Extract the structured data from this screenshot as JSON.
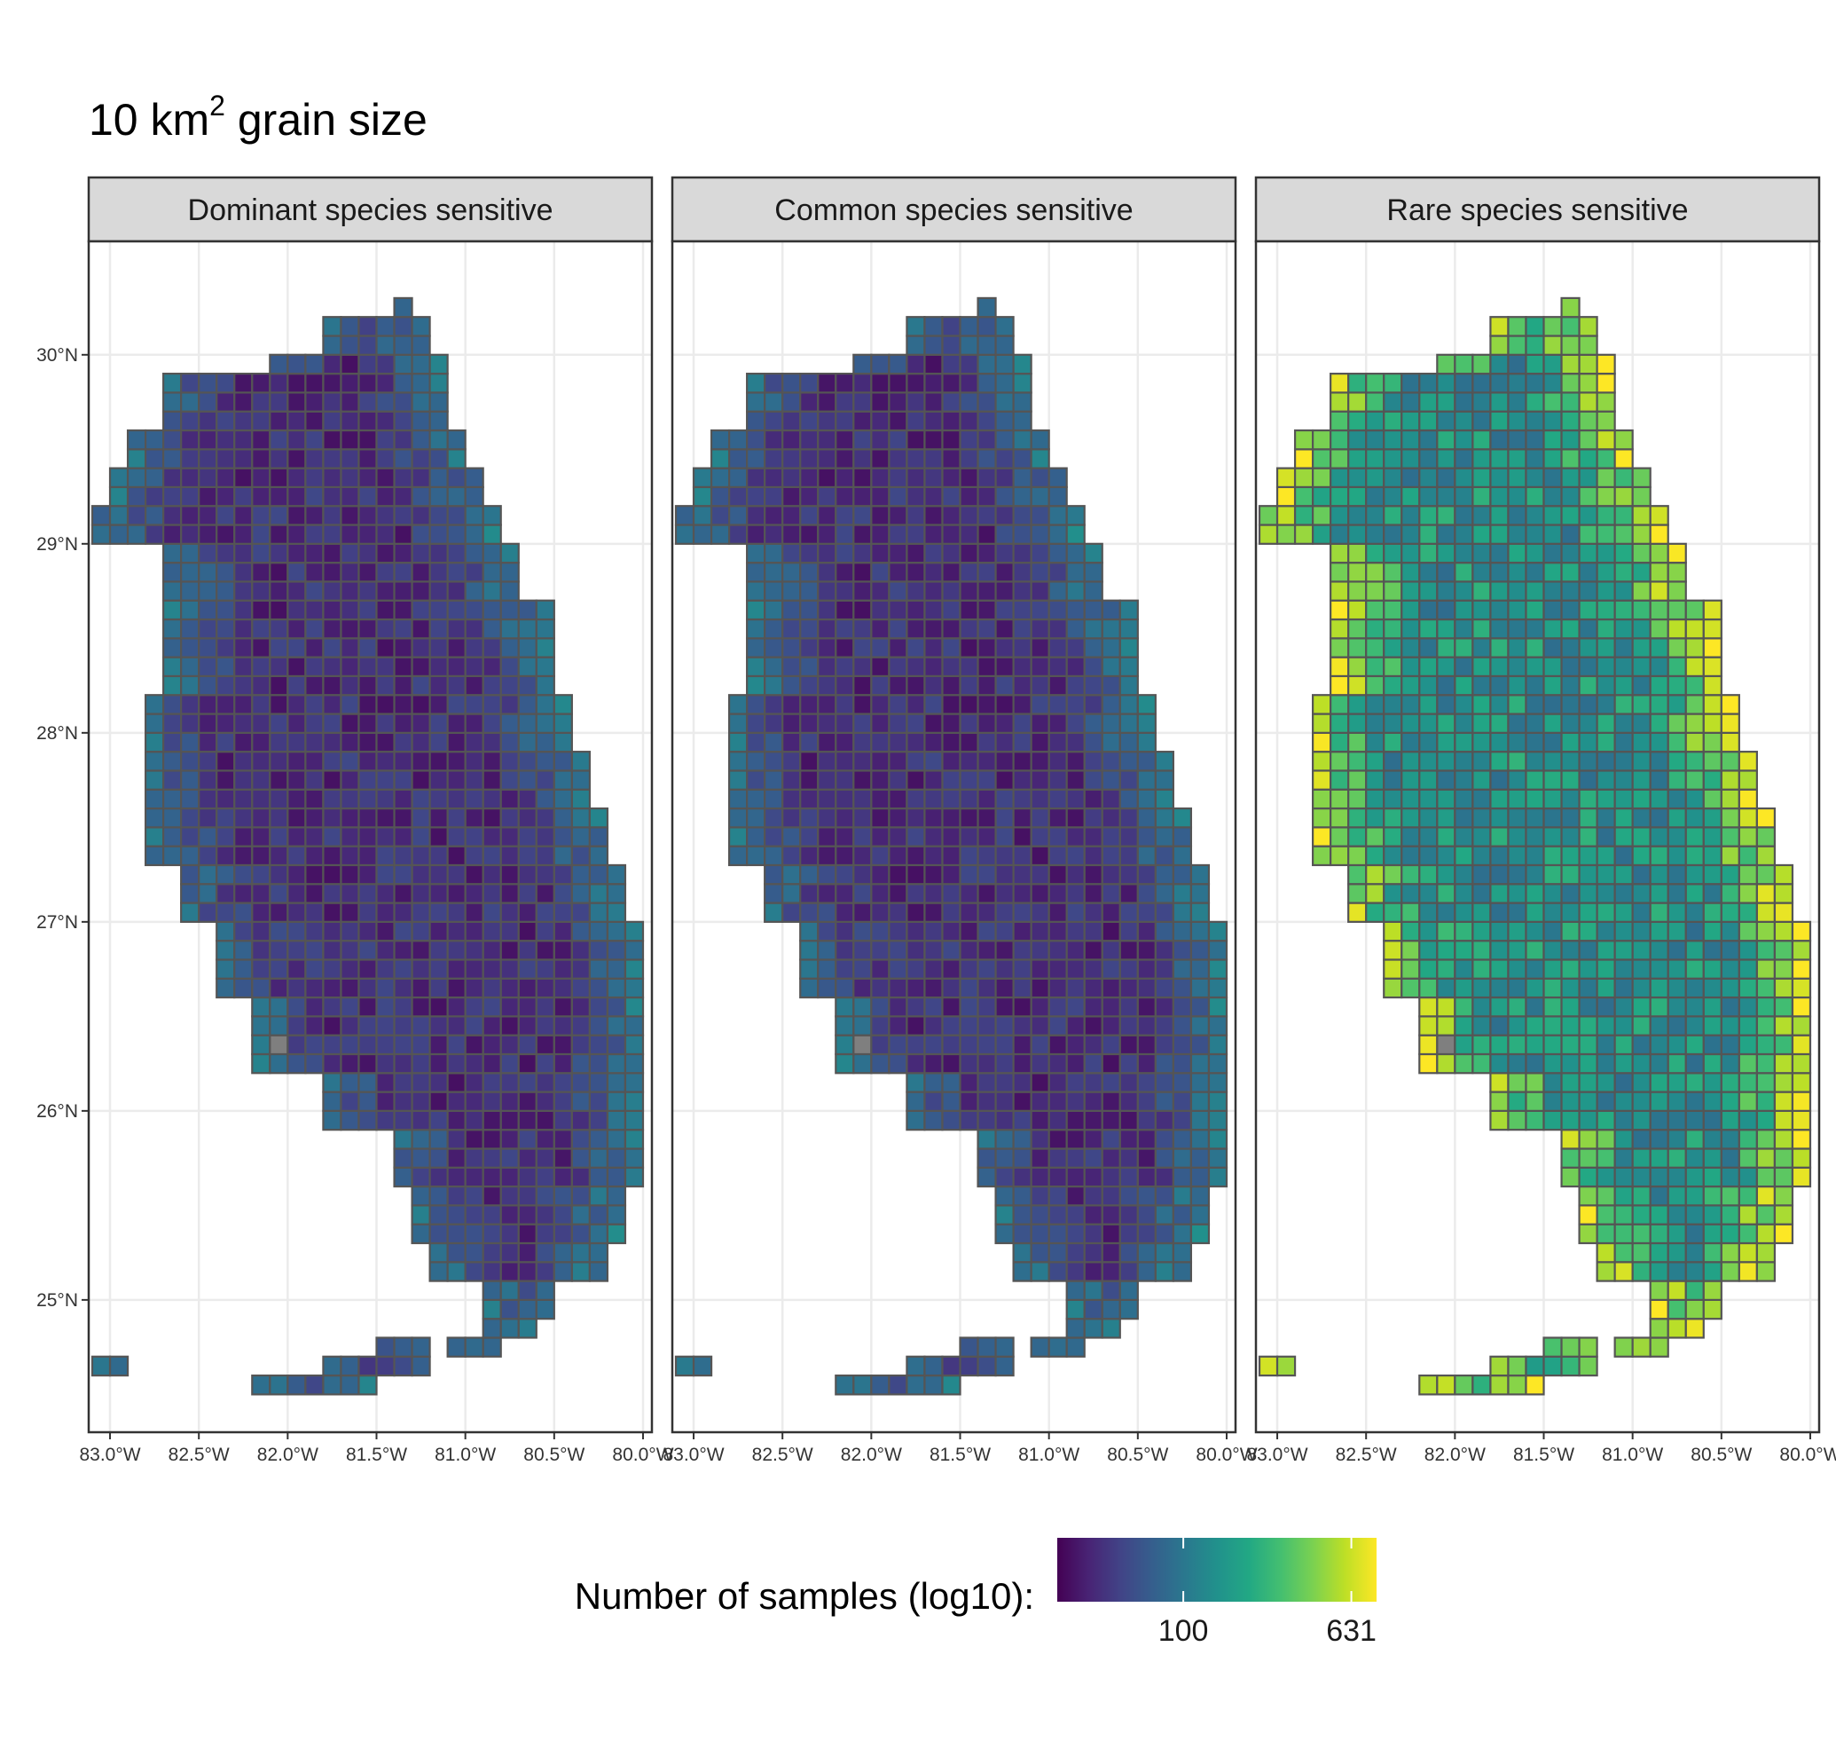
{
  "chart_data": {
    "type": "heatmap",
    "title": {
      "prefix": "10  km",
      "superscript": "2",
      "suffix": " grain size"
    },
    "panels": [
      {
        "label": "Dominant species sensitive",
        "value_scale": 0.78
      },
      {
        "label": "Common species sensitive",
        "value_scale": 0.82
      },
      {
        "label": "Rare species sensitive",
        "value_scale": 1.0
      }
    ],
    "x_ticks": [
      {
        "lon": -83.0,
        "label": "83.0°W"
      },
      {
        "lon": -82.5,
        "label": "82.5°W"
      },
      {
        "lon": -82.0,
        "label": "82.0°W"
      },
      {
        "lon": -81.5,
        "label": "81.5°W"
      },
      {
        "lon": -81.0,
        "label": "81.0°W"
      },
      {
        "lon": -80.5,
        "label": "80.5°W"
      },
      {
        "lon": -80.0,
        "label": "80.0°W"
      }
    ],
    "y_ticks": [
      {
        "lat": 30,
        "label": "30°N"
      },
      {
        "lat": 29,
        "label": "29°N"
      },
      {
        "lat": 28,
        "label": "28°N"
      },
      {
        "lat": 27,
        "label": "27°N"
      },
      {
        "lat": 26,
        "label": "26°N"
      },
      {
        "lat": 25,
        "label": "25°N"
      }
    ],
    "xlim": [
      -83.12,
      -79.95
    ],
    "ylim": [
      24.3,
      30.6
    ],
    "grid": true,
    "grid_cell_degrees": 0.1,
    "colormap": "viridis",
    "na_color": "#7f7f7f",
    "land_shape": {
      "note": "latitude bands in degrees: [north_lat, south_lat, west_lon, east_lon]",
      "bands": [
        [
          30.3,
          30.2,
          -81.42,
          -81.32
        ],
        [
          30.2,
          30.0,
          -81.78,
          -81.22
        ],
        [
          30.0,
          29.9,
          -82.12,
          -81.15
        ],
        [
          29.9,
          29.6,
          -82.75,
          -81.08
        ],
        [
          29.6,
          29.4,
          -82.88,
          -80.98
        ],
        [
          29.4,
          29.2,
          -82.98,
          -80.88
        ],
        [
          29.2,
          29.0,
          -83.08,
          -80.85
        ],
        [
          29.0,
          28.7,
          -82.68,
          -80.72
        ],
        [
          28.7,
          28.5,
          -82.68,
          -80.55
        ],
        [
          28.5,
          28.2,
          -82.68,
          -80.48
        ],
        [
          28.2,
          27.9,
          -82.85,
          -80.45
        ],
        [
          27.9,
          27.6,
          -82.85,
          -80.32
        ],
        [
          27.6,
          27.3,
          -82.8,
          -80.2
        ],
        [
          27.3,
          27.0,
          -82.65,
          -80.12
        ],
        [
          27.0,
          26.6,
          -82.45,
          -80.02
        ],
        [
          26.6,
          26.2,
          -82.2,
          -80.02
        ],
        [
          26.2,
          25.9,
          -81.85,
          -80.02
        ],
        [
          25.9,
          25.6,
          -81.45,
          -80.02
        ],
        [
          25.6,
          25.35,
          -81.3,
          -80.15
        ],
        [
          25.35,
          25.1,
          -81.18,
          -80.25
        ],
        [
          25.1,
          24.95,
          -80.88,
          -80.5
        ],
        [
          24.95,
          24.85,
          -80.95,
          -80.65
        ],
        [
          24.85,
          24.7,
          -81.1,
          -80.85
        ],
        [
          24.8,
          24.7,
          -81.55,
          -81.2
        ],
        [
          24.7,
          24.6,
          -81.85,
          -81.2
        ],
        [
          24.6,
          24.5,
          -82.2,
          -81.55
        ],
        [
          24.72,
          24.6,
          -83.05,
          -82.93
        ]
      ]
    },
    "legend": {
      "title": "Number of samples (log10):",
      "ticks": [
        {
          "label": "100",
          "value": 2.0
        },
        {
          "label": "631",
          "value": 2.8
        }
      ],
      "range": [
        1.4,
        2.92
      ],
      "position": "bottom"
    }
  }
}
